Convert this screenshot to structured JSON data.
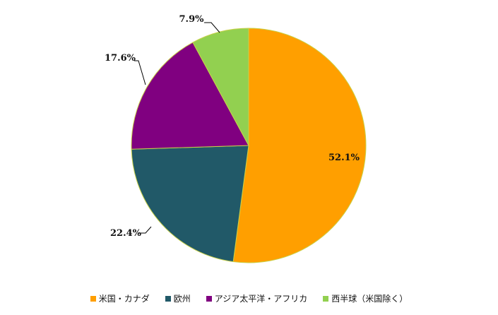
{
  "chart_data": {
    "type": "pie",
    "start_angle_deg": 0,
    "direction": "clockwise",
    "slices": [
      {
        "label": "米国・カナダ",
        "value": 52.1,
        "value_label": "52.1%",
        "color": "#FF9F00",
        "label_position": "inside",
        "legend_label": "米国・カナダ"
      },
      {
        "label": "欧州",
        "value": 22.4,
        "value_label": "22.4%",
        "color": "#215968",
        "label_position": "outside",
        "legend_label": "欧州"
      },
      {
        "label": "アジア太平洋・アフリカ",
        "value": 17.6,
        "value_label": "17.6%",
        "color": "#800080",
        "label_position": "outside",
        "legend_label": "アジア太平洋・アフリカ"
      },
      {
        "label": "西半球（米国除く）",
        "value": 7.9,
        "value_label": "7.9%",
        "color": "#92D050",
        "label_position": "outside",
        "legend_label": "西半球（米国除く）"
      }
    ],
    "slice_border_color": "#C8D14A",
    "legend_position": "bottom"
  }
}
